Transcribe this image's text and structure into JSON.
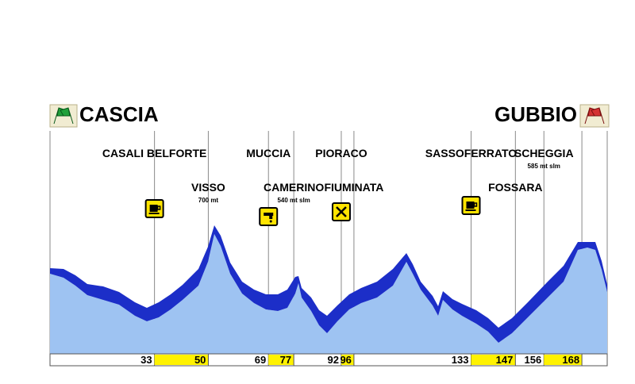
{
  "start_town": "CASCIA",
  "end_town": "GUBBIO",
  "colors": {
    "profile_fill": "#9ec3f2",
    "profile_band": "#1c2ec8",
    "km_highlight": "#fff200",
    "icon_bg": "#ffe400"
  },
  "chart_data": {
    "type": "area",
    "title": "",
    "distance_unit": "km",
    "x_max_km": 176,
    "waypoints": [
      {
        "name": "CASALI BELFORTE",
        "km": 33
      },
      {
        "name": "VISSO",
        "km": 50,
        "altitude": "700 mt"
      },
      {
        "name": "MUCCIA",
        "km": 69
      },
      {
        "name": "CAMERINO",
        "km": 77,
        "altitude": "540 mt slm"
      },
      {
        "name": "PIORACO",
        "km": 92
      },
      {
        "name": "FIUMINATA",
        "km": 96
      },
      {
        "name": "SASSOFERRATO",
        "km": 133
      },
      {
        "name": "FOSSARA",
        "km": 147
      },
      {
        "name": "SCHEGGIA",
        "km": 156,
        "altitude": "585 mt slm"
      },
      {
        "name": "GUBBIO",
        "km": 168
      }
    ],
    "km_markers": [
      {
        "label": "33",
        "km": 33,
        "highlight": false
      },
      {
        "label": "50",
        "km": 50,
        "highlight": true
      },
      {
        "label": "69",
        "km": 69,
        "highlight": false
      },
      {
        "label": "77",
        "km": 77,
        "highlight": true
      },
      {
        "label": "92",
        "km": 92,
        "highlight": false
      },
      {
        "label": "96",
        "km": 96,
        "highlight": true
      },
      {
        "label": "133",
        "km": 133,
        "highlight": false
      },
      {
        "label": "147",
        "km": 147,
        "highlight": true
      },
      {
        "label": "156",
        "km": 156,
        "highlight": false
      },
      {
        "label": "168",
        "km": 168,
        "highlight": true
      }
    ],
    "service_icons": [
      {
        "icon": "coffee-cup-icon",
        "km": 33
      },
      {
        "icon": "water-tap-icon",
        "km": 69
      },
      {
        "icon": "fork-knife-icon",
        "km": 92
      },
      {
        "icon": "coffee-cup-icon",
        "km": 133
      }
    ]
  }
}
